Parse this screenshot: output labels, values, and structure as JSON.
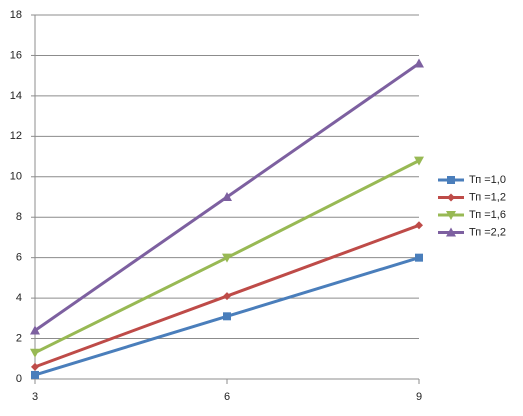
{
  "chart_data": {
    "type": "line",
    "x": [
      3,
      6,
      9
    ],
    "xlim": [
      3,
      9
    ],
    "xticks": [
      3,
      6,
      9
    ],
    "ylim": [
      0,
      18
    ],
    "yticks": [
      0,
      2,
      4,
      6,
      8,
      10,
      12,
      14,
      16,
      18
    ],
    "grid": true,
    "legend": "right",
    "series": [
      {
        "name": "Тп =1,0",
        "color": "#4a7ebb",
        "marker": "square",
        "values": [
          0.2,
          3.1,
          6.0
        ]
      },
      {
        "name": "Тп =1,2",
        "color": "#be4b48",
        "marker": "diamond",
        "values": [
          0.6,
          4.1,
          7.6
        ]
      },
      {
        "name": "Тп =1,6",
        "color": "#98b954",
        "marker": "triangle-down",
        "values": [
          1.3,
          6.0,
          10.8
        ]
      },
      {
        "name": "Тп =2,2",
        "color": "#7d60a0",
        "marker": "triangle-up",
        "values": [
          2.4,
          9.0,
          15.6
        ]
      }
    ]
  }
}
